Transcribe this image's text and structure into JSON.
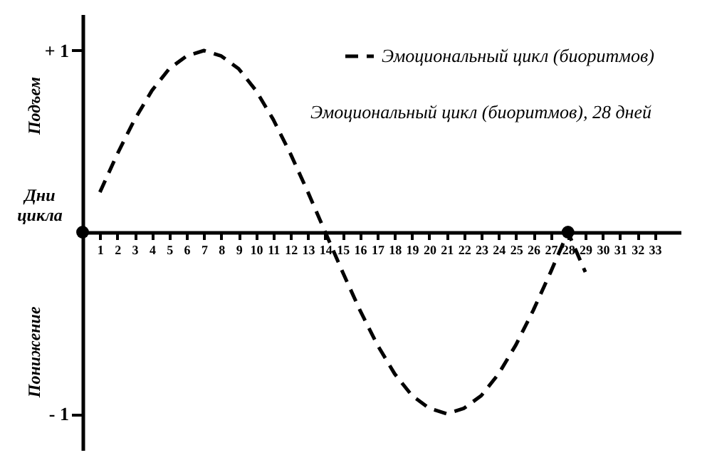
{
  "chart_data": {
    "type": "line",
    "annotations": [
      "Подъем",
      "Понижение",
      "Дни цикла",
      "Эмоциональный цикл (биоритмов), 28 дней"
    ],
    "x": [
      1,
      2,
      3,
      4,
      5,
      6,
      7,
      8,
      9,
      10,
      11,
      12,
      13,
      14,
      15,
      16,
      17,
      18,
      19,
      20,
      21,
      22,
      23,
      24,
      25,
      26,
      27,
      28,
      29
    ],
    "series": [
      {
        "name": "Эмоциональный цикл (биоритмов)",
        "color": "#000000",
        "values": [
          0.22,
          0.43,
          0.62,
          0.78,
          0.9,
          0.97,
          1.0,
          0.97,
          0.9,
          0.78,
          0.62,
          0.43,
          0.22,
          0.0,
          -0.22,
          -0.43,
          -0.62,
          -0.78,
          -0.9,
          -0.97,
          -1.0,
          -0.97,
          -0.9,
          -0.78,
          -0.62,
          -0.43,
          -0.22,
          0.0,
          -0.22
        ]
      },
      {
        "type": "scatter",
        "marker": "circle",
        "color": "#000000",
        "x": [
          0,
          28
        ],
        "values": [
          0,
          0
        ]
      }
    ],
    "xlim": [
      0,
      34.5
    ],
    "xticks": [
      1,
      2,
      3,
      4,
      5,
      6,
      7,
      8,
      9,
      10,
      11,
      12,
      13,
      14,
      15,
      16,
      17,
      18,
      19,
      20,
      21,
      22,
      23,
      24,
      25,
      26,
      27,
      28,
      29,
      30,
      31,
      32,
      33
    ],
    "ylim": [
      -1.2,
      1.2
    ],
    "yticks": [
      {
        "value": 1,
        "label": "+ 1"
      },
      {
        "value": -1,
        "label": "- 1"
      }
    ],
    "grid": false,
    "legend": "top right",
    "marker": "none",
    "line_style": "dashed"
  }
}
